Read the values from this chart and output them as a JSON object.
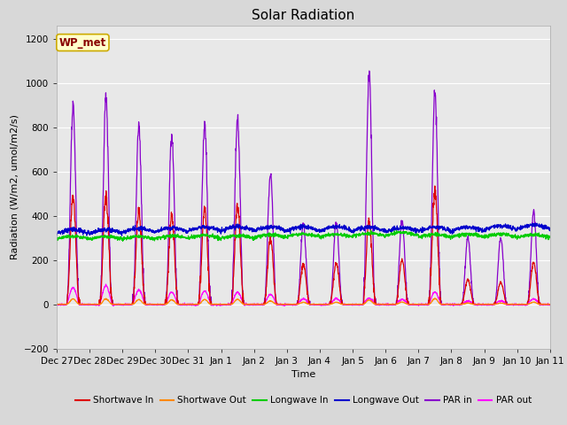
{
  "title": "Solar Radiation",
  "ylabel": "Radiation (W/m2, umol/m2/s)",
  "xlabel": "Time",
  "ylim": [
    -200,
    1260
  ],
  "yticks": [
    -200,
    0,
    200,
    400,
    600,
    800,
    1000,
    1200
  ],
  "fig_bg": "#d8d8d8",
  "plot_bg": "#e8e8e8",
  "annotation_text": "WP_met",
  "annotation_bg": "#ffffcc",
  "annotation_border": "#ccaa00",
  "series": {
    "shortwave_in": {
      "color": "#dd0000",
      "label": "Shortwave In",
      "lw": 0.9
    },
    "shortwave_out": {
      "color": "#ff8800",
      "label": "Shortwave Out",
      "lw": 0.9
    },
    "longwave_in": {
      "color": "#00cc00",
      "label": "Longwave In",
      "lw": 0.9
    },
    "longwave_out": {
      "color": "#0000cc",
      "label": "Longwave Out",
      "lw": 0.9
    },
    "par_in": {
      "color": "#8800cc",
      "label": "PAR in",
      "lw": 0.9
    },
    "par_out": {
      "color": "#ff00ff",
      "label": "PAR out",
      "lw": 0.9
    }
  },
  "xtick_labels": [
    "Dec 27",
    "Dec 28",
    "Dec 29",
    "Dec 30",
    "Dec 31",
    "Jan 1",
    "Jan 2",
    "Jan 3",
    "Jan 4",
    "Jan 5",
    "Jan 6",
    "Jan 7",
    "Jan 8",
    "Jan 9",
    "Jan 10",
    "Jan 11"
  ],
  "n_days": 15,
  "pts_per_day": 144
}
